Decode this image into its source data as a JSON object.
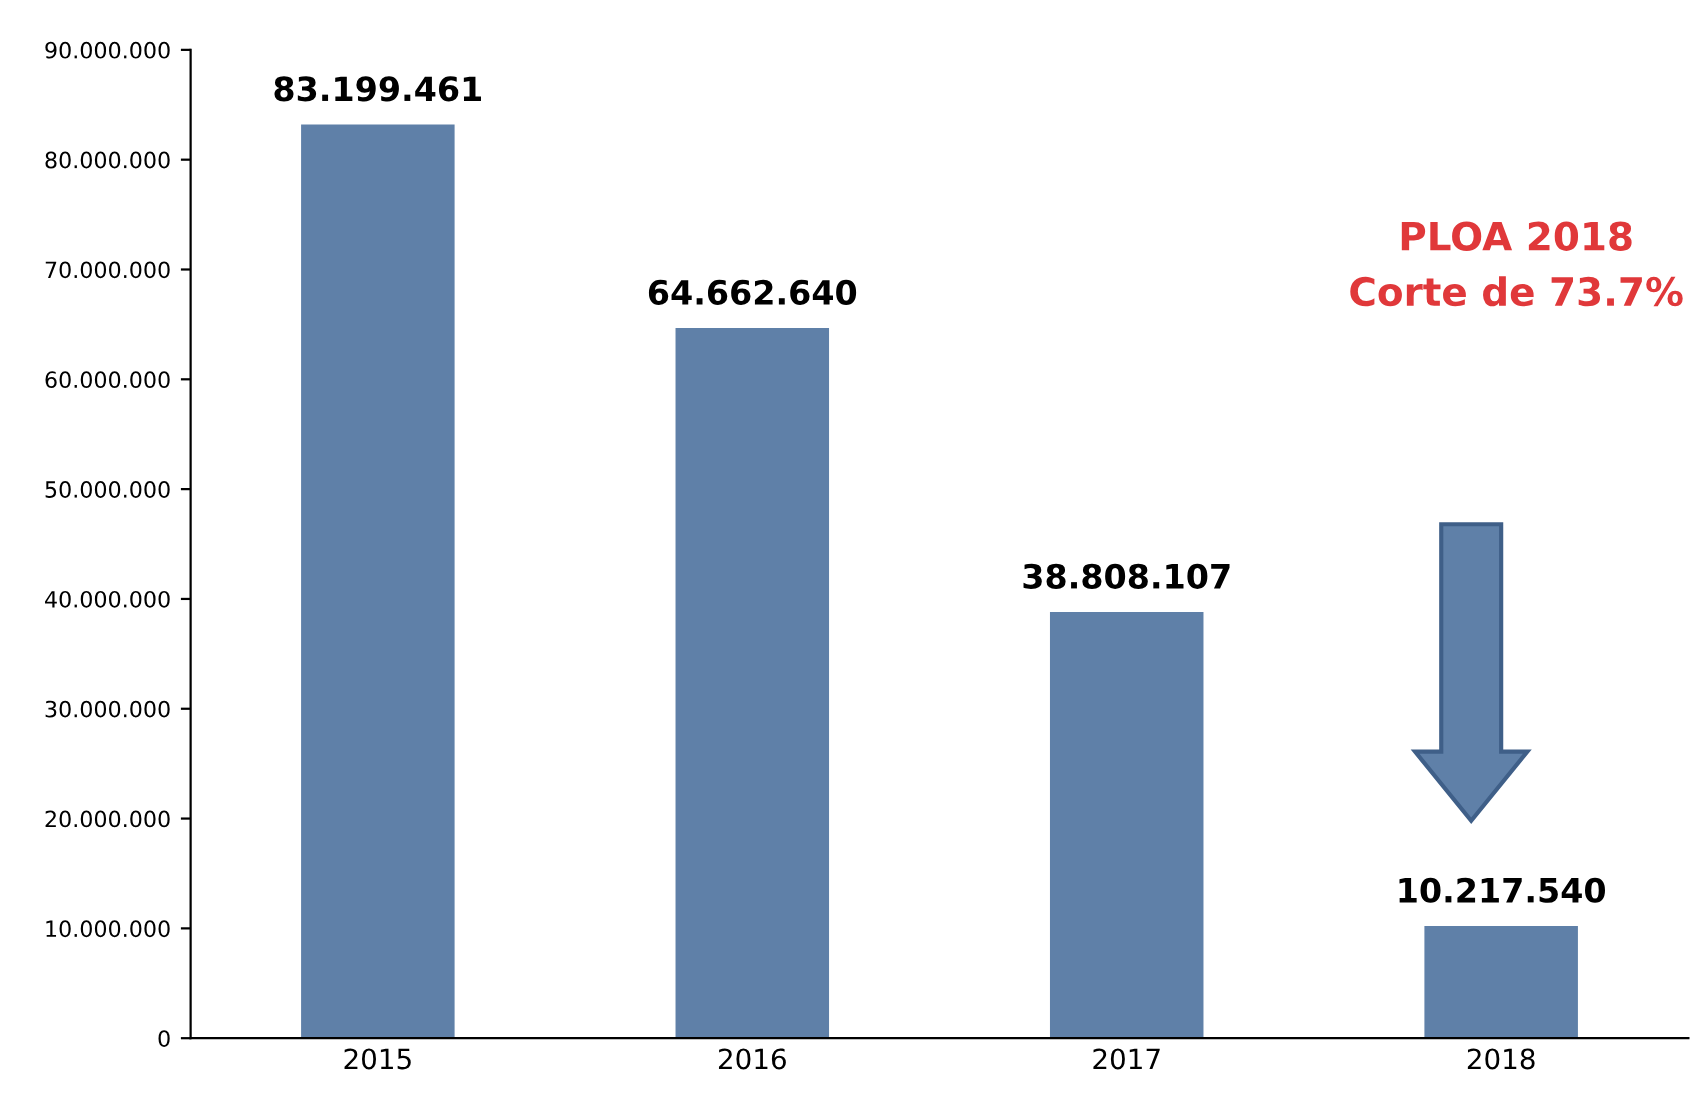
{
  "chart_data": {
    "type": "bar",
    "categories": [
      "2015",
      "2016",
      "2017",
      "2018"
    ],
    "values": [
      83199461,
      64662640,
      38808107,
      10217540
    ],
    "value_labels": [
      "83.199.461",
      "64.662.640",
      "38.808.107",
      "10.217.540"
    ],
    "color": "#5f80a8",
    "ylim": [
      0,
      90000000
    ],
    "yticks": [
      0,
      {
        "value": 10000000,
        "label": "10.000.000"
      },
      {
        "value": 20000000,
        "label": "20.000.000"
      },
      {
        "value": 30000000,
        "label": "30.000.000"
      },
      {
        "value": 40000000,
        "label": "40.000.000"
      },
      {
        "value": 50000000,
        "label": "50.000.000"
      },
      {
        "value": 60000000,
        "label": "60.000.000"
      },
      {
        "value": 70000000,
        "label": "70.000.000"
      },
      {
        "value": 80000000,
        "label": "80.000.000"
      },
      {
        "value": 90000000,
        "label": "90.000.000"
      }
    ],
    "annotations": [
      "PLOA 2018\nCorte de 73.7%"
    ],
    "grid": false,
    "legend": false
  }
}
